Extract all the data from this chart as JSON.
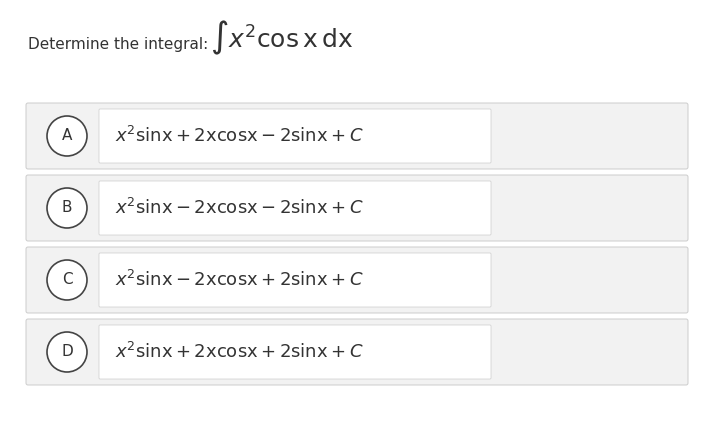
{
  "background_color": "#ffffff",
  "question_text": "Determine the integral:",
  "options": [
    {
      "label": "A",
      "expr_A": true
    },
    {
      "label": "B",
      "expr_B": true
    },
    {
      "label": "C",
      "expr_C": true
    },
    {
      "label": "D",
      "expr_D": true
    }
  ],
  "option_box_color": "#f2f2f2",
  "option_box_edge_color": "#cccccc",
  "outer_box_color": "#f2f2f2",
  "outer_box_edge_color": "#cccccc",
  "circle_edge_color": "#444444",
  "circle_face_color": "#ffffff",
  "text_color": "#333333",
  "label_color": "#333333",
  "question_fontsize": 11,
  "integral_fontsize": 18,
  "option_label_fontsize": 11,
  "option_text_fontsize": 13
}
